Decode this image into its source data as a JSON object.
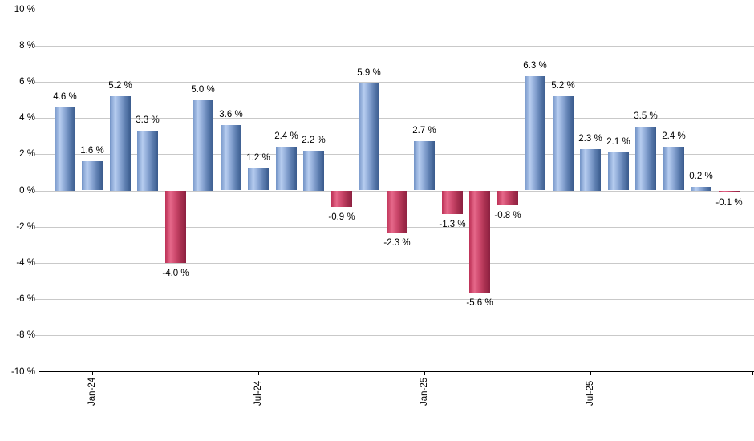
{
  "chart_data": {
    "type": "bar",
    "title": "",
    "xlabel": "",
    "ylabel": "",
    "y_axis": {
      "min": -10,
      "max": 10,
      "step": 2,
      "tick_labels": [
        "10 %",
        "8 %",
        "6 %",
        "4 %",
        "2 %",
        "0 %",
        "-2 %",
        "-4 %",
        "-6 %",
        "-8 %",
        "-10 %"
      ]
    },
    "x_axis": {
      "tick_labels": [
        "Jan-24",
        "Jul-24",
        "Jan-25",
        "Jul-25"
      ],
      "tick_bar_indices": [
        1,
        7,
        13,
        19
      ]
    },
    "bars": [
      {
        "value": 4.6,
        "label": "4.6 %"
      },
      {
        "value": 1.6,
        "label": "1.6 %"
      },
      {
        "value": 5.2,
        "label": "5.2 %"
      },
      {
        "value": 3.3,
        "label": "3.3 %"
      },
      {
        "value": -4.0,
        "label": "-4.0 %"
      },
      {
        "value": 5.0,
        "label": "5.0 %"
      },
      {
        "value": 3.6,
        "label": "3.6 %"
      },
      {
        "value": 1.2,
        "label": "1.2 %"
      },
      {
        "value": 2.4,
        "label": "2.4 %"
      },
      {
        "value": 2.2,
        "label": "2.2 %"
      },
      {
        "value": -0.9,
        "label": "-0.9 %"
      },
      {
        "value": 5.9,
        "label": "5.9 %"
      },
      {
        "value": -2.3,
        "label": "-2.3 %"
      },
      {
        "value": 2.7,
        "label": "2.7 %"
      },
      {
        "value": -1.3,
        "label": "-1.3 %"
      },
      {
        "value": -5.6,
        "label": "-5.6 %"
      },
      {
        "value": -0.8,
        "label": "-0.8 %"
      },
      {
        "value": 6.3,
        "label": "6.3 %"
      },
      {
        "value": 5.2,
        "label": "5.2 %"
      },
      {
        "value": 2.3,
        "label": "2.3 %"
      },
      {
        "value": 2.1,
        "label": "2.1 %"
      },
      {
        "value": 3.5,
        "label": "3.5 %"
      },
      {
        "value": 2.4,
        "label": "2.4 %"
      },
      {
        "value": 0.2,
        "label": "0.2 %"
      },
      {
        "value": -0.1,
        "label": "-0.1 %"
      }
    ],
    "colors": {
      "positive": "#8aa6d4",
      "negative": "#cc476b",
      "grid": "#c9c9c9",
      "axis": "#000000",
      "background": "#ffffff",
      "label_text": "#000000"
    },
    "legend": "none",
    "grid": "horizontal"
  }
}
